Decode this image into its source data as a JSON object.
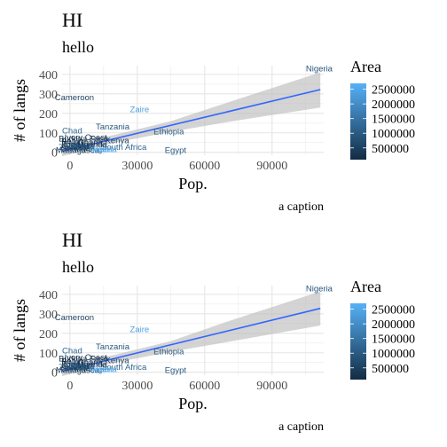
{
  "chart_data": [
    {
      "type": "scatter",
      "title": "HI",
      "subtitle": "hello",
      "caption": "a caption",
      "xlabel": "Pop.",
      "ylabel": "# of langs",
      "xlim": [
        -3500,
        113000
      ],
      "ylim": [
        -15,
        445
      ],
      "x_ticks": [
        0,
        30000,
        60000,
        90000
      ],
      "x_tick_labels": [
        "0",
        "30000",
        "60000",
        "90000"
      ],
      "y_ticks": [
        0,
        100,
        200,
        300,
        400
      ],
      "y_tick_labels": [
        "0",
        "100",
        "200",
        "300",
        "400"
      ],
      "grid": true,
      "legend_position": "right",
      "legend": {
        "title": "Area",
        "min": 100000,
        "max": 2700000,
        "breaks": [
          500000,
          1000000,
          1500000,
          2000000,
          2500000
        ],
        "break_labels": [
          "500000",
          "1000000",
          "1500000",
          "2000000",
          "2500000"
        ],
        "low_color": "#132b43",
        "high_color": "#56b1f7"
      },
      "points": [
        {
          "label": "Nigeria",
          "x": 111000,
          "y": 430,
          "area": 924000
        },
        {
          "label": "Cameroon",
          "x": 2000,
          "y": 280,
          "area": 475000
        },
        {
          "label": "Zaire",
          "x": 31000,
          "y": 220,
          "area": 2345000
        },
        {
          "label": "Tanzania",
          "x": 19000,
          "y": 130,
          "area": 945000
        },
        {
          "label": "Ethiopia",
          "x": 44000,
          "y": 105,
          "area": 1100000
        },
        {
          "label": "Chad",
          "x": 1000,
          "y": 110,
          "area": 1284000
        },
        {
          "label": "Kenya",
          "x": 21000,
          "y": 60,
          "area": 580000
        },
        {
          "label": "South Africa",
          "x": 24000,
          "y": 25,
          "area": 1221000
        },
        {
          "label": "Egypt",
          "x": 47000,
          "y": 10,
          "area": 1001000
        },
        {
          "label": "Madagascar",
          "x": 4000,
          "y": 10,
          "area": 587000
        },
        {
          "label": "Sudan",
          "x": 14000,
          "y": 15,
          "area": 2506000
        },
        {
          "label": "Mali",
          "x": 3000,
          "y": 45,
          "area": 1240000
        },
        {
          "label": "Niger",
          "x": 2000,
          "y": 35,
          "area": 1267000
        },
        {
          "label": "Ghana",
          "x": 9000,
          "y": 50,
          "area": 239000
        },
        {
          "label": "Ivory Coast",
          "x": 7000,
          "y": 75,
          "area": 322000
        },
        {
          "label": "Burkina Faso",
          "x": 6000,
          "y": 70,
          "area": 274000
        },
        {
          "label": "Uganda",
          "x": 10000,
          "y": 40,
          "area": 236000
        },
        {
          "label": "Benin",
          "x": 1000,
          "y": 55,
          "area": 113000
        },
        {
          "label": "Togo",
          "x": 500,
          "y": 40,
          "area": 57000
        },
        {
          "label": "Senegal",
          "x": 3000,
          "y": 20,
          "area": 197000
        },
        {
          "label": "Guinea",
          "x": 2500,
          "y": 30,
          "area": 246000
        },
        {
          "label": "Algeria",
          "x": 15000,
          "y": 15,
          "area": 2382000
        },
        {
          "label": "Angola",
          "x": 5000,
          "y": 30,
          "area": 1247000
        },
        {
          "label": "Zambia",
          "x": 1200,
          "y": 25,
          "area": 753000
        }
      ],
      "fit": {
        "x0": -3500,
        "y0": 5,
        "x1": 111500,
        "y1": 322,
        "band": [
          {
            "x": -3500,
            "lo": -20,
            "hi": 30
          },
          {
            "x": 20000,
            "lo": 50,
            "hi": 90
          },
          {
            "x": 45000,
            "lo": 105,
            "hi": 160
          },
          {
            "x": 70000,
            "lo": 155,
            "hi": 255
          },
          {
            "x": 111500,
            "lo": 230,
            "hi": 410
          }
        ],
        "line_color": "#3366ff",
        "band_color": "#bdbdbd"
      }
    },
    {
      "type": "scatter",
      "title": "HI",
      "subtitle": "hello",
      "caption": "a caption",
      "xlabel": "Pop.",
      "ylabel": "# of langs",
      "xlim": [
        -3500,
        113000
      ],
      "ylim": [
        -15,
        445
      ],
      "x_ticks": [
        0,
        30000,
        60000,
        90000
      ],
      "x_tick_labels": [
        "0",
        "30000",
        "60000",
        "90000"
      ],
      "y_ticks": [
        0,
        100,
        200,
        300,
        400
      ],
      "y_tick_labels": [
        "0",
        "100",
        "200",
        "300",
        "400"
      ],
      "grid": true,
      "legend_position": "right",
      "legend": {
        "title": "Area",
        "min": 100000,
        "max": 2700000,
        "breaks": [
          500000,
          1000000,
          1500000,
          2000000,
          2500000
        ],
        "break_labels": [
          "500000",
          "1000000",
          "1500000",
          "2000000",
          "2500000"
        ],
        "low_color": "#132b43",
        "high_color": "#56b1f7"
      },
      "points": [
        {
          "label": "Nigeria",
          "x": 111000,
          "y": 430,
          "area": 924000
        },
        {
          "label": "Cameroon",
          "x": 2000,
          "y": 280,
          "area": 475000
        },
        {
          "label": "Zaire",
          "x": 31000,
          "y": 220,
          "area": 2345000
        },
        {
          "label": "Tanzania",
          "x": 19000,
          "y": 130,
          "area": 945000
        },
        {
          "label": "Ethiopia",
          "x": 44000,
          "y": 105,
          "area": 1100000
        },
        {
          "label": "Chad",
          "x": 1000,
          "y": 110,
          "area": 1284000
        },
        {
          "label": "Kenya",
          "x": 21000,
          "y": 60,
          "area": 580000
        },
        {
          "label": "South Africa",
          "x": 24000,
          "y": 25,
          "area": 1221000
        },
        {
          "label": "Egypt",
          "x": 47000,
          "y": 10,
          "area": 1001000
        },
        {
          "label": "Madagascar",
          "x": 4000,
          "y": 10,
          "area": 587000
        },
        {
          "label": "Sudan",
          "x": 14000,
          "y": 15,
          "area": 2506000
        },
        {
          "label": "Mali",
          "x": 3000,
          "y": 45,
          "area": 1240000
        },
        {
          "label": "Niger",
          "x": 2000,
          "y": 35,
          "area": 1267000
        },
        {
          "label": "Ghana",
          "x": 9000,
          "y": 50,
          "area": 239000
        },
        {
          "label": "Ivory Coast",
          "x": 7000,
          "y": 75,
          "area": 322000
        },
        {
          "label": "Burkina Faso",
          "x": 6000,
          "y": 70,
          "area": 274000
        },
        {
          "label": "Uganda",
          "x": 10000,
          "y": 40,
          "area": 236000
        },
        {
          "label": "Benin",
          "x": 1000,
          "y": 55,
          "area": 113000
        },
        {
          "label": "Togo",
          "x": 500,
          "y": 40,
          "area": 57000
        },
        {
          "label": "Senegal",
          "x": 3000,
          "y": 20,
          "area": 197000
        },
        {
          "label": "Guinea",
          "x": 2500,
          "y": 30,
          "area": 246000
        },
        {
          "label": "Algeria",
          "x": 15000,
          "y": 15,
          "area": 2382000
        },
        {
          "label": "Angola",
          "x": 5000,
          "y": 30,
          "area": 1247000
        },
        {
          "label": "Zambia",
          "x": 1200,
          "y": 25,
          "area": 753000
        }
      ],
      "fit": {
        "x0": -3500,
        "y0": 5,
        "x1": 111500,
        "y1": 328,
        "band": [
          {
            "x": -3500,
            "lo": -20,
            "hi": 30
          },
          {
            "x": 20000,
            "lo": 50,
            "hi": 90
          },
          {
            "x": 45000,
            "lo": 105,
            "hi": 160
          },
          {
            "x": 70000,
            "lo": 155,
            "hi": 260
          },
          {
            "x": 111500,
            "lo": 240,
            "hi": 415
          }
        ],
        "line_color": "#3366ff",
        "band_color": "#bdbdbd"
      }
    }
  ]
}
